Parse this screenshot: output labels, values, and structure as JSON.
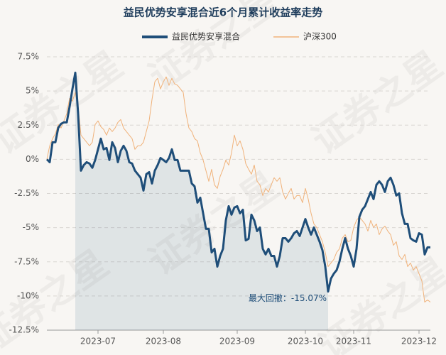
{
  "chart_data": {
    "type": "line",
    "title": "益民优势安享混合近6个月累计收益率走势",
    "watermark": "证券之星",
    "annotation": "最大回撤：-15.07%",
    "categories": [
      null,
      null,
      null,
      null,
      null,
      null,
      null,
      null,
      null,
      null,
      null,
      null,
      null,
      null,
      null,
      null,
      null,
      null,
      "2023-07",
      null,
      null,
      null,
      null,
      null,
      null,
      null,
      null,
      null,
      null,
      null,
      null,
      null,
      null,
      null,
      null,
      null,
      null,
      null,
      null,
      null,
      null,
      "2023-08",
      null,
      null,
      null,
      null,
      null,
      null,
      null,
      null,
      null,
      null,
      null,
      null,
      null,
      null,
      null,
      null,
      null,
      null,
      null,
      null,
      null,
      null,
      null,
      null,
      null,
      "2023-09",
      null,
      null,
      null,
      null,
      null,
      null,
      null,
      null,
      null,
      null,
      null,
      null,
      null,
      null,
      null,
      null,
      null,
      null,
      null,
      null,
      null,
      null,
      null,
      "2023-10",
      null,
      null,
      null,
      null,
      null,
      null,
      null,
      null,
      null,
      null,
      null,
      null,
      null,
      null,
      null,
      null,
      "2023-11",
      null,
      null,
      null,
      null,
      null,
      null,
      null,
      null,
      null,
      null,
      null,
      null,
      null,
      null,
      null,
      null,
      null,
      null,
      null,
      null,
      null,
      null,
      "2023-12",
      null,
      null,
      null,
      null
    ],
    "series": [
      {
        "name": "益民优势安享混合",
        "color": "#1f4e79",
        "values": [
          0,
          -0.21,
          1.25,
          1.25,
          2.3,
          2.6,
          2.7,
          2.7,
          3.85,
          5.15,
          6.34,
          3.33,
          -0.83,
          -0.42,
          -0.21,
          -0.31,
          -0.62,
          -0.05,
          0.73,
          1.51,
          0.73,
          0.83,
          -0.05,
          1.25,
          0.83,
          -0.21,
          0.62,
          0.99,
          0.62,
          -0.21,
          -0.31,
          -0.83,
          -1.09,
          -1.35,
          -2.29,
          -1.09,
          -0.94,
          -1.77,
          -0.83,
          -0.42,
          0.1,
          -0.05,
          -0.21,
          0.1,
          0.73,
          -0.05,
          -0.05,
          -0.83,
          -0.83,
          -0.83,
          -0.83,
          -1.77,
          -1.98,
          -3.17,
          -2.81,
          -3.95,
          -5.09,
          -5.09,
          -6.81,
          -6.55,
          -7.85,
          -7.07,
          -6.55,
          -4.47,
          -3.43,
          -4.05,
          -3.53,
          -3.43,
          -3.95,
          -3.69,
          -5.93,
          -5.82,
          -4.05,
          -4.47,
          -5.25,
          -4.99,
          -6.55,
          -6.96,
          -6.55,
          -7.07,
          -7.07,
          -7.85,
          -7.07,
          -5.77,
          -5.77,
          -6.03,
          -5.77,
          -5.41,
          -5.25,
          -5.61,
          -4.99,
          -4.37,
          -4.99,
          -5.51,
          -4.99,
          -5.51,
          -6.03,
          -6.65,
          -7.85,
          -9.67,
          -8.73,
          -8.37,
          -8.11,
          -7.48,
          -6.55,
          -5.77,
          -6.55,
          -7.07,
          -7.85,
          -6.55,
          -4.21,
          -3.69,
          -3.43,
          -2.91,
          -2.39,
          -2.91,
          -1.87,
          -1.61,
          -1.87,
          -2.39,
          -1.61,
          -1.35,
          -1.87,
          -2.65,
          -2.49,
          -3.95,
          -4.73,
          -4.73,
          -5.77,
          -5.93,
          -6.03,
          -5.41,
          -5.51,
          -6.96,
          -6.44,
          -6.44
        ]
      },
      {
        "name": "沪深300",
        "color": "#f0b27a",
        "values": [
          0,
          0.99,
          1.51,
          1.87,
          2.55,
          2.29,
          2.81,
          3.33,
          4.47,
          4.26,
          4.89,
          3.85,
          1.77,
          1.51,
          1.25,
          0.99,
          1.25,
          2.55,
          2.81,
          2.39,
          2.18,
          1.77,
          2.29,
          2.03,
          2.29,
          2.7,
          2.91,
          2.29,
          2.03,
          1.77,
          1.51,
          0.73,
          0.99,
          0.99,
          1.25,
          2.03,
          2.81,
          4.37,
          5.67,
          5.93,
          5.15,
          5.67,
          6.03,
          5.41,
          5.93,
          5.51,
          5.41,
          5.15,
          4.89,
          3.33,
          2.29,
          2.03,
          1.51,
          1.35,
          0.47,
          -0.05,
          -0.83,
          -1.61,
          -0.73,
          -1.87,
          -2.13,
          -1.25,
          -0.73,
          -0.05,
          -0.42,
          0.47,
          1.77,
          0.99,
          1.35,
          0.73,
          -0.31,
          -0.73,
          -1.09,
          -0.42,
          -1.61,
          -1.87,
          -2.65,
          -2.13,
          -2.39,
          -1.87,
          -1.35,
          -1.61,
          -1.35,
          -2.39,
          -2.91,
          -2.49,
          -2.13,
          -2.91,
          -2.65,
          -2.65,
          -3.17,
          -2.13,
          -2.91,
          -3.95,
          -4.73,
          -4.99,
          -5.51,
          -6.03,
          -6.81,
          -7.85,
          -7.59,
          -7.33,
          -6.81,
          -6.55,
          -5.77,
          -5.51,
          -6.03,
          -5.93,
          -4.99,
          -4.47,
          -4.21,
          -4.47,
          -4.73,
          -5.25,
          -4.47,
          -4.99,
          -4.73,
          -5.51,
          -5.09,
          -4.89,
          -5.25,
          -5.51,
          -6.29,
          -6.03,
          -7.07,
          -7.33,
          -6.96,
          -7.85,
          -7.59,
          -8.11,
          -7.85,
          -8.37,
          -8.89,
          -10.45,
          -10.29,
          -10.45
        ]
      }
    ],
    "ylim": [
      -12.5,
      7.5
    ],
    "yticks": [
      {
        "value": 7.5,
        "label": "7.5%"
      },
      {
        "value": 5,
        "label": "5%"
      },
      {
        "value": 2.5,
        "label": "2.5%"
      },
      {
        "value": 0,
        "label": "0%"
      },
      {
        "value": -2.5,
        "label": "-2.5%"
      },
      {
        "value": -5,
        "label": "-5%"
      },
      {
        "value": -7.5,
        "label": "-7.5%"
      },
      {
        "value": -10,
        "label": "-10%"
      },
      {
        "value": -12.5,
        "label": "-12.5%"
      }
    ],
    "grid": true
  }
}
